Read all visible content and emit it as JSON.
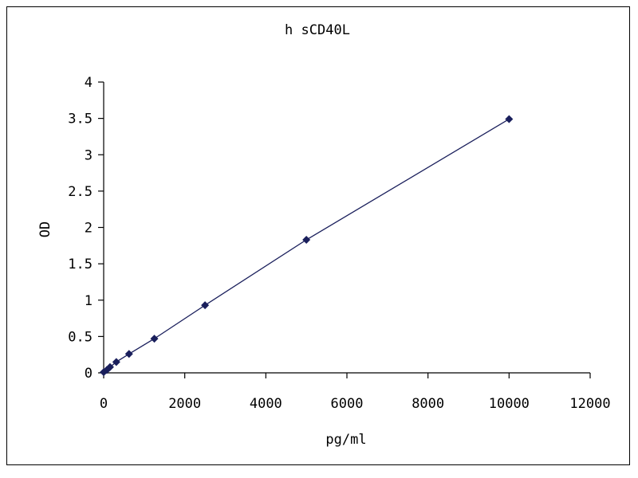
{
  "chart_data": {
    "type": "scatter",
    "title": "h sCD40L",
    "xlabel": "pg/ml",
    "ylabel": "OD",
    "xlim": [
      0,
      12000
    ],
    "ylim": [
      0,
      4
    ],
    "x_ticks": [
      "0",
      "2000",
      "4000",
      "6000",
      "8000",
      "10000",
      "12000"
    ],
    "y_ticks": [
      "0",
      "0.5",
      "1",
      "1.5",
      "2",
      "2.5",
      "3",
      "3.5",
      "4"
    ],
    "grid": false,
    "legend": "none",
    "series": [
      {
        "x": [
          0,
          78,
          156,
          312,
          625,
          1250,
          2500,
          5000,
          10000
        ],
        "y": [
          0.01,
          0.04,
          0.08,
          0.15,
          0.26,
          0.47,
          0.93,
          1.83,
          3.49
        ],
        "marker": "diamond",
        "line": "straight",
        "color": "#1a1f5c"
      }
    ]
  }
}
